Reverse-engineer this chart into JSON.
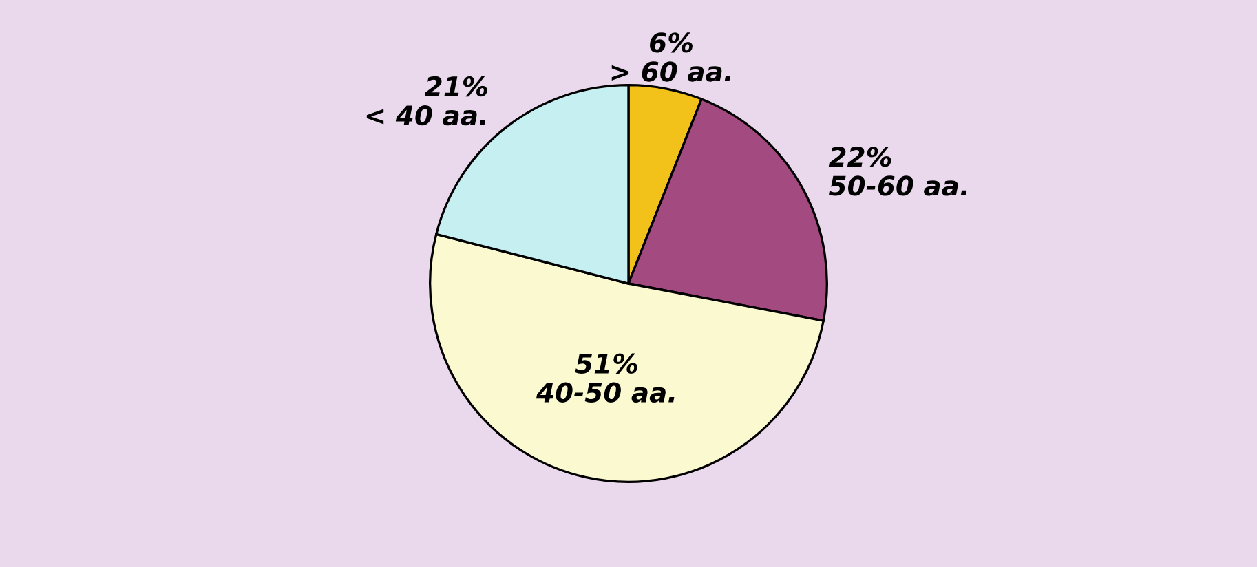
{
  "chart_data": {
    "type": "pie",
    "categories": [
      "> 60 aa.",
      "50-60 aa.",
      "40-50 aa.",
      "< 40 aa."
    ],
    "values": [
      6,
      22,
      51,
      21
    ],
    "value_labels": [
      "6%",
      "22%",
      "51%",
      "21%"
    ],
    "colors": [
      "#f2c21a",
      "#a34a80",
      "#fbf9cf",
      "#c6eff2"
    ],
    "legend": false
  }
}
